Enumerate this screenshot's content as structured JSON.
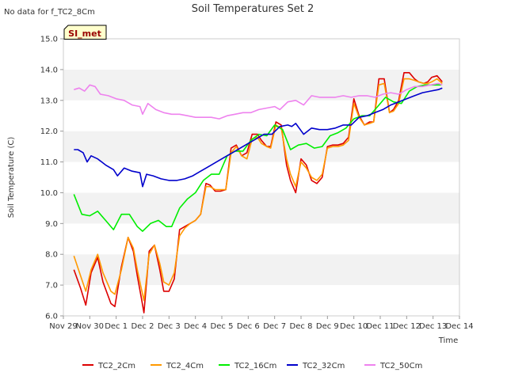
{
  "no_data_note": "No data for f_TC2_8Cm",
  "site_badge": "SI_met",
  "chart_data": {
    "type": "line",
    "title": "Soil Temperatures Set 2",
    "xlabel": "Time",
    "ylabel": "Soil Temperature (C)",
    "ylim": [
      6.0,
      15.0
    ],
    "xlim": [
      0,
      15
    ],
    "yticks": [
      "6.0",
      "7.0",
      "8.0",
      "9.0",
      "10.0",
      "11.0",
      "12.0",
      "13.0",
      "14.0",
      "15.0"
    ],
    "xtick_labels": [
      "Nov 29",
      "Nov 30",
      "Dec 1",
      "Dec 2",
      "Dec 3",
      "Dec 4",
      "Dec 5",
      "Dec 6",
      "Dec 7",
      "Dec 8",
      "Dec 9",
      "Dec 10",
      "Dec 11",
      "Dec 12",
      "Dec 13",
      "Dec 14"
    ],
    "x_unit": "days since Nov 29",
    "grid": "horizontal-bands",
    "legend_position": "bottom",
    "series": [
      {
        "name": "TC2_2Cm",
        "color": "#dd0000",
        "x": [
          0.4,
          0.65,
          0.85,
          1.05,
          1.3,
          1.5,
          1.8,
          1.95,
          2.2,
          2.45,
          2.65,
          2.8,
          2.95,
          3.05,
          3.25,
          3.45,
          3.65,
          3.8,
          4.0,
          4.2,
          4.4,
          4.6,
          4.8,
          5.0,
          5.2,
          5.4,
          5.55,
          5.75,
          5.95,
          6.15,
          6.35,
          6.55,
          6.75,
          6.95,
          7.15,
          7.35,
          7.5,
          7.7,
          7.85,
          8.05,
          8.25,
          8.45,
          8.6,
          8.8,
          9.0,
          9.2,
          9.4,
          9.6,
          9.8,
          10.0,
          10.2,
          10.4,
          10.6,
          10.8,
          11.0,
          11.2,
          11.4,
          11.6,
          11.75,
          11.95,
          12.15,
          12.35,
          12.5,
          12.7,
          12.9,
          13.1,
          13.3,
          13.45,
          13.65,
          13.8,
          13.95,
          14.15,
          14.35
        ],
        "values": [
          7.5,
          6.9,
          6.35,
          7.4,
          7.9,
          7.1,
          6.4,
          6.3,
          7.6,
          8.55,
          8.1,
          7.3,
          6.6,
          6.1,
          8.1,
          8.3,
          7.5,
          6.8,
          6.8,
          7.2,
          8.8,
          8.9,
          9.0,
          9.1,
          9.3,
          10.3,
          10.25,
          10.05,
          10.05,
          10.1,
          11.45,
          11.55,
          11.2,
          11.3,
          11.9,
          11.9,
          11.7,
          11.5,
          11.5,
          12.3,
          12.2,
          10.9,
          10.4,
          10.0,
          11.1,
          10.9,
          10.4,
          10.3,
          10.5,
          11.5,
          11.55,
          11.55,
          11.6,
          11.8,
          13.05,
          12.5,
          12.2,
          12.3,
          12.3,
          13.7,
          13.7,
          12.6,
          12.7,
          13.0,
          13.9,
          13.9,
          13.7,
          13.6,
          13.55,
          13.6,
          13.75,
          13.8,
          13.6
        ]
      },
      {
        "name": "TC2_4Cm",
        "color": "#ff9900",
        "x": [
          0.4,
          0.65,
          0.85,
          1.05,
          1.3,
          1.5,
          1.8,
          1.95,
          2.2,
          2.45,
          2.65,
          2.8,
          2.95,
          3.05,
          3.25,
          3.45,
          3.65,
          3.8,
          4.0,
          4.2,
          4.4,
          4.6,
          4.8,
          5.0,
          5.2,
          5.4,
          5.55,
          5.75,
          5.95,
          6.15,
          6.35,
          6.55,
          6.75,
          6.95,
          7.15,
          7.35,
          7.5,
          7.7,
          7.85,
          8.05,
          8.25,
          8.45,
          8.6,
          8.8,
          9.0,
          9.2,
          9.4,
          9.6,
          9.8,
          10.0,
          10.2,
          10.4,
          10.6,
          10.8,
          11.0,
          11.2,
          11.4,
          11.6,
          11.75,
          11.95,
          12.15,
          12.35,
          12.5,
          12.7,
          12.9,
          13.1,
          13.3,
          13.45,
          13.65,
          13.8,
          13.95,
          14.15,
          14.35
        ],
        "values": [
          7.95,
          7.3,
          6.8,
          7.5,
          8.0,
          7.4,
          6.8,
          6.7,
          7.5,
          8.55,
          8.2,
          7.5,
          6.9,
          6.5,
          8.0,
          8.3,
          7.7,
          7.1,
          7.0,
          7.4,
          8.6,
          8.85,
          9.0,
          9.1,
          9.3,
          10.2,
          10.2,
          10.1,
          10.1,
          10.1,
          11.3,
          11.5,
          11.2,
          11.1,
          11.75,
          11.8,
          11.6,
          11.5,
          11.45,
          12.2,
          12.1,
          11.1,
          10.6,
          10.2,
          11.0,
          10.8,
          10.5,
          10.4,
          10.6,
          11.45,
          11.5,
          11.5,
          11.55,
          11.7,
          12.9,
          12.45,
          12.2,
          12.25,
          12.3,
          13.5,
          13.55,
          12.6,
          12.65,
          12.9,
          13.7,
          13.7,
          13.65,
          13.6,
          13.55,
          13.55,
          13.6,
          13.7,
          13.55
        ]
      },
      {
        "name": "TC2_16Cm",
        "color": "#00ee00",
        "x": [
          0.4,
          0.7,
          1.0,
          1.3,
          1.6,
          1.9,
          2.2,
          2.5,
          2.8,
          3.0,
          3.3,
          3.6,
          3.9,
          4.1,
          4.4,
          4.7,
          5.0,
          5.3,
          5.6,
          5.9,
          6.2,
          6.5,
          6.8,
          7.1,
          7.4,
          7.7,
          8.0,
          8.3,
          8.6,
          8.9,
          9.2,
          9.5,
          9.8,
          10.1,
          10.4,
          10.7,
          11.0,
          11.3,
          11.6,
          11.9,
          12.2,
          12.5,
          12.8,
          13.1,
          13.4,
          13.7,
          14.0,
          14.3
        ],
        "values": [
          9.95,
          9.3,
          9.25,
          9.4,
          9.1,
          8.8,
          9.3,
          9.3,
          8.9,
          8.75,
          9.0,
          9.1,
          8.9,
          8.9,
          9.5,
          9.8,
          10.0,
          10.4,
          10.6,
          10.6,
          11.2,
          11.35,
          11.35,
          11.7,
          11.9,
          11.85,
          12.2,
          12.05,
          11.4,
          11.55,
          11.6,
          11.45,
          11.5,
          11.85,
          11.95,
          12.1,
          12.4,
          12.5,
          12.5,
          12.8,
          13.1,
          12.95,
          12.9,
          13.3,
          13.45,
          13.5,
          13.5,
          13.5
        ]
      },
      {
        "name": "TC2_32Cm",
        "color": "#0000cc",
        "x": [
          0.4,
          0.55,
          0.75,
          0.9,
          1.05,
          1.3,
          1.6,
          1.9,
          2.05,
          2.3,
          2.6,
          2.9,
          3.0,
          3.15,
          3.4,
          3.7,
          4.0,
          4.3,
          4.6,
          4.9,
          5.2,
          5.5,
          5.8,
          6.1,
          6.4,
          6.7,
          7.0,
          7.3,
          7.6,
          7.9,
          8.2,
          8.5,
          8.65,
          8.8,
          9.1,
          9.4,
          9.7,
          10.0,
          10.3,
          10.6,
          10.9,
          11.2,
          11.5,
          11.8,
          12.1,
          12.4,
          12.7,
          13.0,
          13.3,
          13.6,
          13.9,
          14.2,
          14.35
        ],
        "values": [
          11.4,
          11.4,
          11.3,
          11.0,
          11.2,
          11.1,
          10.9,
          10.75,
          10.55,
          10.8,
          10.7,
          10.65,
          10.2,
          10.6,
          10.55,
          10.45,
          10.4,
          10.4,
          10.45,
          10.55,
          10.7,
          10.85,
          11.0,
          11.15,
          11.3,
          11.45,
          11.6,
          11.75,
          11.9,
          11.9,
          12.15,
          12.2,
          12.15,
          12.25,
          11.9,
          12.1,
          12.05,
          12.05,
          12.1,
          12.2,
          12.2,
          12.45,
          12.5,
          12.6,
          12.7,
          12.85,
          12.95,
          13.05,
          13.15,
          13.25,
          13.3,
          13.35,
          13.4
        ]
      },
      {
        "name": "TC2_50Cm",
        "color": "#ee82ee",
        "x": [
          0.4,
          0.6,
          0.8,
          1.0,
          1.2,
          1.4,
          1.7,
          2.0,
          2.3,
          2.6,
          2.9,
          3.0,
          3.2,
          3.5,
          3.8,
          4.1,
          4.4,
          4.7,
          5.0,
          5.3,
          5.6,
          5.9,
          6.2,
          6.5,
          6.8,
          7.1,
          7.4,
          7.7,
          8.0,
          8.2,
          8.5,
          8.8,
          9.1,
          9.4,
          9.7,
          10.0,
          10.3,
          10.6,
          10.9,
          11.2,
          11.5,
          11.8,
          12.1,
          12.4,
          12.7,
          13.0,
          13.3,
          13.6,
          13.9,
          14.2,
          14.35
        ],
        "values": [
          13.35,
          13.4,
          13.3,
          13.5,
          13.45,
          13.2,
          13.15,
          13.05,
          13.0,
          12.85,
          12.8,
          12.55,
          12.9,
          12.7,
          12.6,
          12.55,
          12.55,
          12.5,
          12.45,
          12.45,
          12.45,
          12.4,
          12.5,
          12.55,
          12.6,
          12.6,
          12.7,
          12.75,
          12.8,
          12.7,
          12.95,
          13.0,
          12.85,
          13.15,
          13.1,
          13.1,
          13.1,
          13.15,
          13.1,
          13.15,
          13.15,
          13.1,
          13.2,
          13.25,
          13.2,
          13.35,
          13.45,
          13.45,
          13.5,
          13.55,
          13.5
        ]
      }
    ]
  }
}
